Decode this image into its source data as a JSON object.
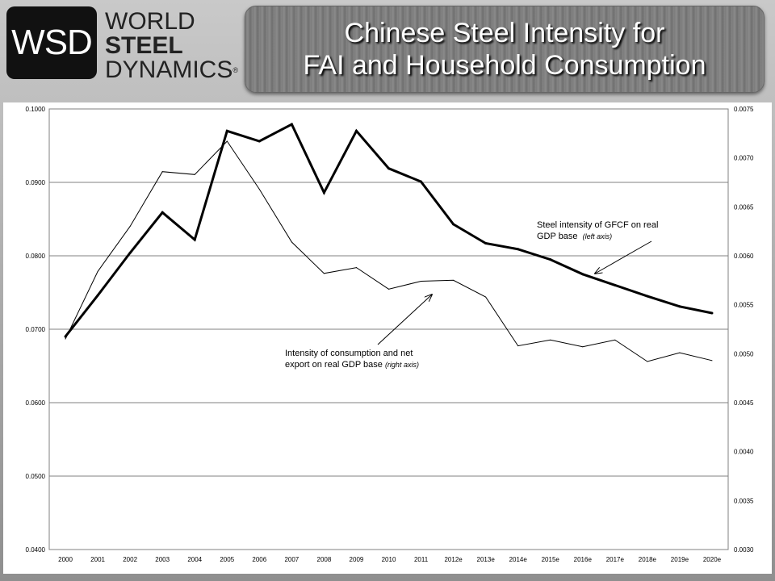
{
  "header": {
    "logo_abbrev": "WSD",
    "logo_line1": "WORLD",
    "logo_line2": "STEEL",
    "logo_line3": "DYNAMICS",
    "logo_mark": "®",
    "title_line1": "Chinese Steel Intensity for",
    "title_line2": "FAI and Household Consumption"
  },
  "chart_data": {
    "type": "line",
    "title": "",
    "xlabel": "",
    "ylabel": "",
    "categories": [
      "2000",
      "2001",
      "2002",
      "2003",
      "2004",
      "2005",
      "2006",
      "2007",
      "2008",
      "2009",
      "2010",
      "2011",
      "2012e",
      "2013e",
      "2014e",
      "2015e",
      "2016e",
      "2017e",
      "2018e",
      "2019e",
      "2020e"
    ],
    "left_axis": {
      "ylim": [
        0.04,
        0.1
      ],
      "ticks": [
        "0.0400",
        "0.0500",
        "0.0600",
        "0.0700",
        "0.0800",
        "0.0900",
        "0.1000"
      ]
    },
    "right_axis": {
      "ylim": [
        0.003,
        0.0075
      ],
      "ticks": [
        "0.0030",
        "0.0035",
        "0.0040",
        "0.0045",
        "0.0050",
        "0.0055",
        "0.0060",
        "0.0065",
        "0.0070",
        "0.0075"
      ]
    },
    "grid": true,
    "legend": "none",
    "series": [
      {
        "axis": "left",
        "values": [
          0.069,
          0.0746,
          0.0804,
          0.0859,
          0.0822,
          0.097,
          0.0956,
          0.0979,
          0.0886,
          0.097,
          0.0919,
          0.0901,
          0.0843,
          0.0817,
          0.0809,
          0.0795,
          0.0775,
          0.076,
          0.0745,
          0.0731,
          0.0722
        ]
      },
      {
        "axis": "right",
        "values": [
          0.00515,
          0.00584,
          0.0063,
          0.00686,
          0.00683,
          0.00717,
          0.00668,
          0.00614,
          0.00582,
          0.00588,
          0.00566,
          0.00574,
          0.00575,
          0.00558,
          0.00508,
          0.00514,
          0.00507,
          0.00514,
          0.00492,
          0.00501,
          0.00493
        ]
      }
    ],
    "annotations": [
      {
        "line1": "Steel intensity of GFCF on real",
        "line2": "GDP base",
        "note": "(left axis)"
      },
      {
        "line1": "Intensity of consumption and net",
        "line2": "export on real GDP base",
        "note": "(right axis)"
      }
    ],
    "colors": {
      "line": "#000000",
      "grid": "#808080"
    }
  }
}
